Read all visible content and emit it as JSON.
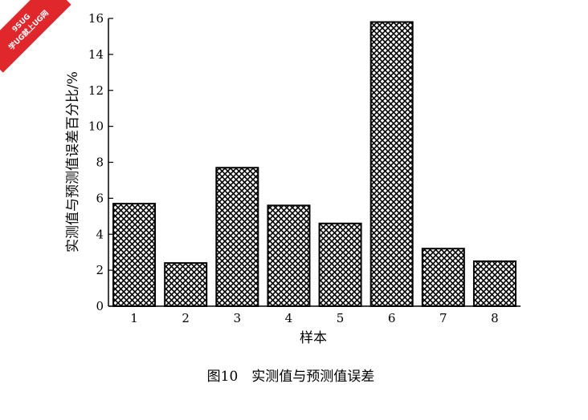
{
  "watermark": {
    "line1": "9SUG",
    "line2": "学UG就上UG网"
  },
  "chart_data": {
    "type": "bar",
    "categories": [
      "1",
      "2",
      "3",
      "4",
      "5",
      "6",
      "7",
      "8"
    ],
    "values": [
      5.7,
      2.4,
      7.7,
      5.6,
      4.6,
      15.8,
      3.2,
      2.5
    ],
    "xlabel": "样本",
    "ylabel": "实测值与预测值误差百分比/%",
    "ylim": [
      0,
      16
    ],
    "yticks": [
      0,
      2,
      4,
      6,
      8,
      10,
      12,
      14,
      16
    ],
    "grid": false,
    "legend": "none",
    "bar_fill": "crosshatch",
    "caption": "图10　实测值与预测值误差"
  },
  "colors": {
    "bar_stroke": "#000000",
    "bar_hatch": "#000000",
    "background": "#ffffff",
    "watermark_bg": "#e0282c"
  }
}
